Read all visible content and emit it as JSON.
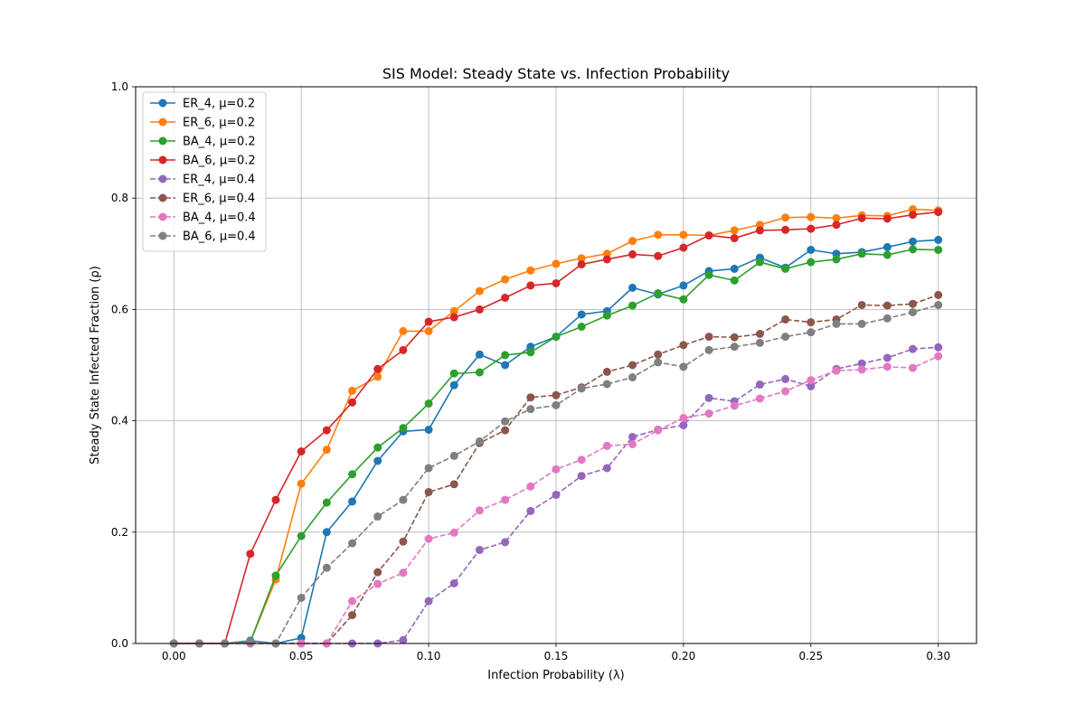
{
  "chart_data": {
    "type": "line",
    "title": "SIS Model: Steady State vs. Infection Probability",
    "xlabel": "Infection Probability (λ)",
    "ylabel": "Steady State Infected Fraction (ρ)",
    "xlim": [
      -0.015,
      0.315
    ],
    "ylim": [
      0,
      1.0
    ],
    "xticks": [
      "0.00",
      "0.05",
      "0.10",
      "0.15",
      "0.20",
      "0.25",
      "0.30"
    ],
    "yticks": [
      "0.0",
      "0.2",
      "0.4",
      "0.6",
      "0.8",
      "1.0"
    ],
    "grid": true,
    "legend_position": "upper left",
    "x": [
      0.0,
      0.01,
      0.02,
      0.03,
      0.04,
      0.05,
      0.06,
      0.07,
      0.08,
      0.09,
      0.1,
      0.11,
      0.12,
      0.13,
      0.14,
      0.15,
      0.16,
      0.17,
      0.18,
      0.19,
      0.2,
      0.21,
      0.22,
      0.23,
      0.24,
      0.25,
      0.26,
      0.27,
      0.28,
      0.29,
      0.3
    ],
    "series": [
      {
        "name": "ER_4, μ=0.2",
        "color": "#1f77b4",
        "dashed": false,
        "values": [
          0,
          0,
          0,
          0.005,
          0,
          0.01,
          0.2,
          0.255,
          0.328,
          0.381,
          0.384,
          0.464,
          0.519,
          0.5,
          0.533,
          0.551,
          0.591,
          0.597,
          0.639,
          0.627,
          0.643,
          0.669,
          0.673,
          0.693,
          0.675,
          0.707,
          0.7,
          0.703,
          0.712,
          0.722,
          0.725
        ]
      },
      {
        "name": "ER_6, μ=0.2",
        "color": "#ff7f0e",
        "dashed": false,
        "values": [
          0,
          0,
          0,
          0.003,
          0.115,
          0.287,
          0.348,
          0.454,
          0.479,
          0.561,
          0.561,
          0.597,
          0.633,
          0.654,
          0.67,
          0.682,
          0.692,
          0.7,
          0.723,
          0.734,
          0.734,
          0.733,
          0.742,
          0.752,
          0.765,
          0.766,
          0.764,
          0.769,
          0.768,
          0.78,
          0.778
        ]
      },
      {
        "name": "BA_4, μ=0.2",
        "color": "#2ca02c",
        "dashed": false,
        "values": [
          0,
          0,
          0,
          0.003,
          0.122,
          0.193,
          0.253,
          0.304,
          0.352,
          0.387,
          0.431,
          0.485,
          0.487,
          0.518,
          0.523,
          0.551,
          0.569,
          0.589,
          0.607,
          0.629,
          0.618,
          0.662,
          0.652,
          0.685,
          0.673,
          0.685,
          0.69,
          0.7,
          0.698,
          0.708,
          0.707
        ]
      },
      {
        "name": "BA_6, μ=0.2",
        "color": "#d62728",
        "dashed": false,
        "values": [
          0,
          0,
          0,
          0.161,
          0.258,
          0.345,
          0.383,
          0.433,
          0.493,
          0.527,
          0.578,
          0.586,
          0.6,
          0.621,
          0.643,
          0.647,
          0.681,
          0.69,
          0.699,
          0.696,
          0.711,
          0.733,
          0.728,
          0.742,
          0.743,
          0.745,
          0.752,
          0.764,
          0.763,
          0.77,
          0.775
        ]
      },
      {
        "name": "ER_4, μ=0.4",
        "color": "#9467bd",
        "dashed": true,
        "values": [
          0,
          0,
          0,
          0,
          0,
          0,
          0,
          0,
          0,
          0.006,
          0.076,
          0.108,
          0.168,
          0.182,
          0.238,
          0.267,
          0.301,
          0.315,
          0.371,
          0.384,
          0.392,
          0.441,
          0.435,
          0.465,
          0.475,
          0.462,
          0.493,
          0.503,
          0.513,
          0.529,
          0.532
        ]
      },
      {
        "name": "ER_6, μ=0.4",
        "color": "#8c564b",
        "dashed": true,
        "values": [
          0,
          0,
          0,
          0,
          0,
          0,
          0,
          0.051,
          0.128,
          0.183,
          0.272,
          0.286,
          0.36,
          0.383,
          0.442,
          0.446,
          0.46,
          0.488,
          0.5,
          0.519,
          0.536,
          0.551,
          0.55,
          0.556,
          0.582,
          0.577,
          0.582,
          0.608,
          0.607,
          0.61,
          0.626
        ]
      },
      {
        "name": "BA_4, μ=0.4",
        "color": "#e377c2",
        "dashed": true,
        "values": [
          0,
          0,
          0,
          0,
          0,
          0,
          0,
          0.076,
          0.107,
          0.127,
          0.188,
          0.199,
          0.239,
          0.258,
          0.282,
          0.313,
          0.33,
          0.355,
          0.358,
          0.383,
          0.405,
          0.413,
          0.427,
          0.44,
          0.453,
          0.473,
          0.49,
          0.492,
          0.497,
          0.495,
          0.516
        ]
      },
      {
        "name": "BA_6, μ=0.4",
        "color": "#7f7f7f",
        "dashed": true,
        "values": [
          0,
          0,
          0,
          0.003,
          0,
          0.082,
          0.136,
          0.18,
          0.228,
          0.258,
          0.315,
          0.337,
          0.363,
          0.399,
          0.421,
          0.428,
          0.458,
          0.466,
          0.478,
          0.505,
          0.497,
          0.527,
          0.533,
          0.54,
          0.551,
          0.559,
          0.574,
          0.574,
          0.584,
          0.595,
          0.608
        ]
      }
    ]
  }
}
